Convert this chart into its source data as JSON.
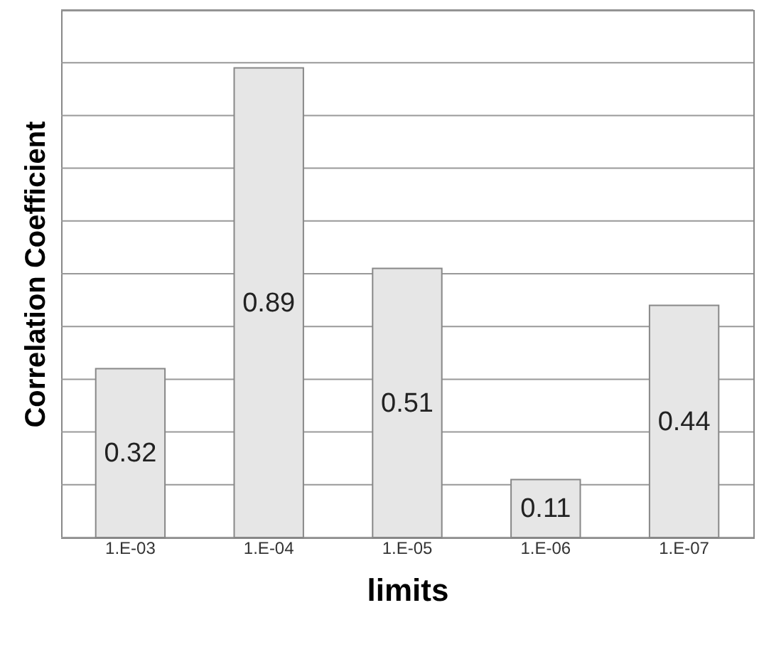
{
  "chart_data": {
    "type": "bar",
    "xlabel": "limits",
    "ylabel": "Correlation Coefficient",
    "categories": [
      "1.E-03",
      "1.E-04",
      "1.E-05",
      "1.E-06",
      "1.E-07"
    ],
    "values": [
      0.32,
      0.89,
      0.51,
      0.11,
      0.44
    ],
    "color": "#e6e6e6",
    "ylim": [
      0,
      1
    ],
    "yticks": [
      {
        "value": 0,
        "label": null
      },
      {
        "value": 0.1,
        "label": null
      },
      {
        "value": 0.2,
        "label": null
      },
      {
        "value": 0.3,
        "label": null
      },
      {
        "value": 0.4,
        "label": null
      },
      {
        "value": 0.5,
        "label": null
      },
      {
        "value": 0.6,
        "label": null
      },
      {
        "value": 0.7,
        "label": null
      },
      {
        "value": 0.8,
        "label": null
      },
      {
        "value": 0.9,
        "label": null
      },
      {
        "value": 1,
        "label": null
      }
    ],
    "grid": "y",
    "tick_labels": "x",
    "data_labels": true
  }
}
